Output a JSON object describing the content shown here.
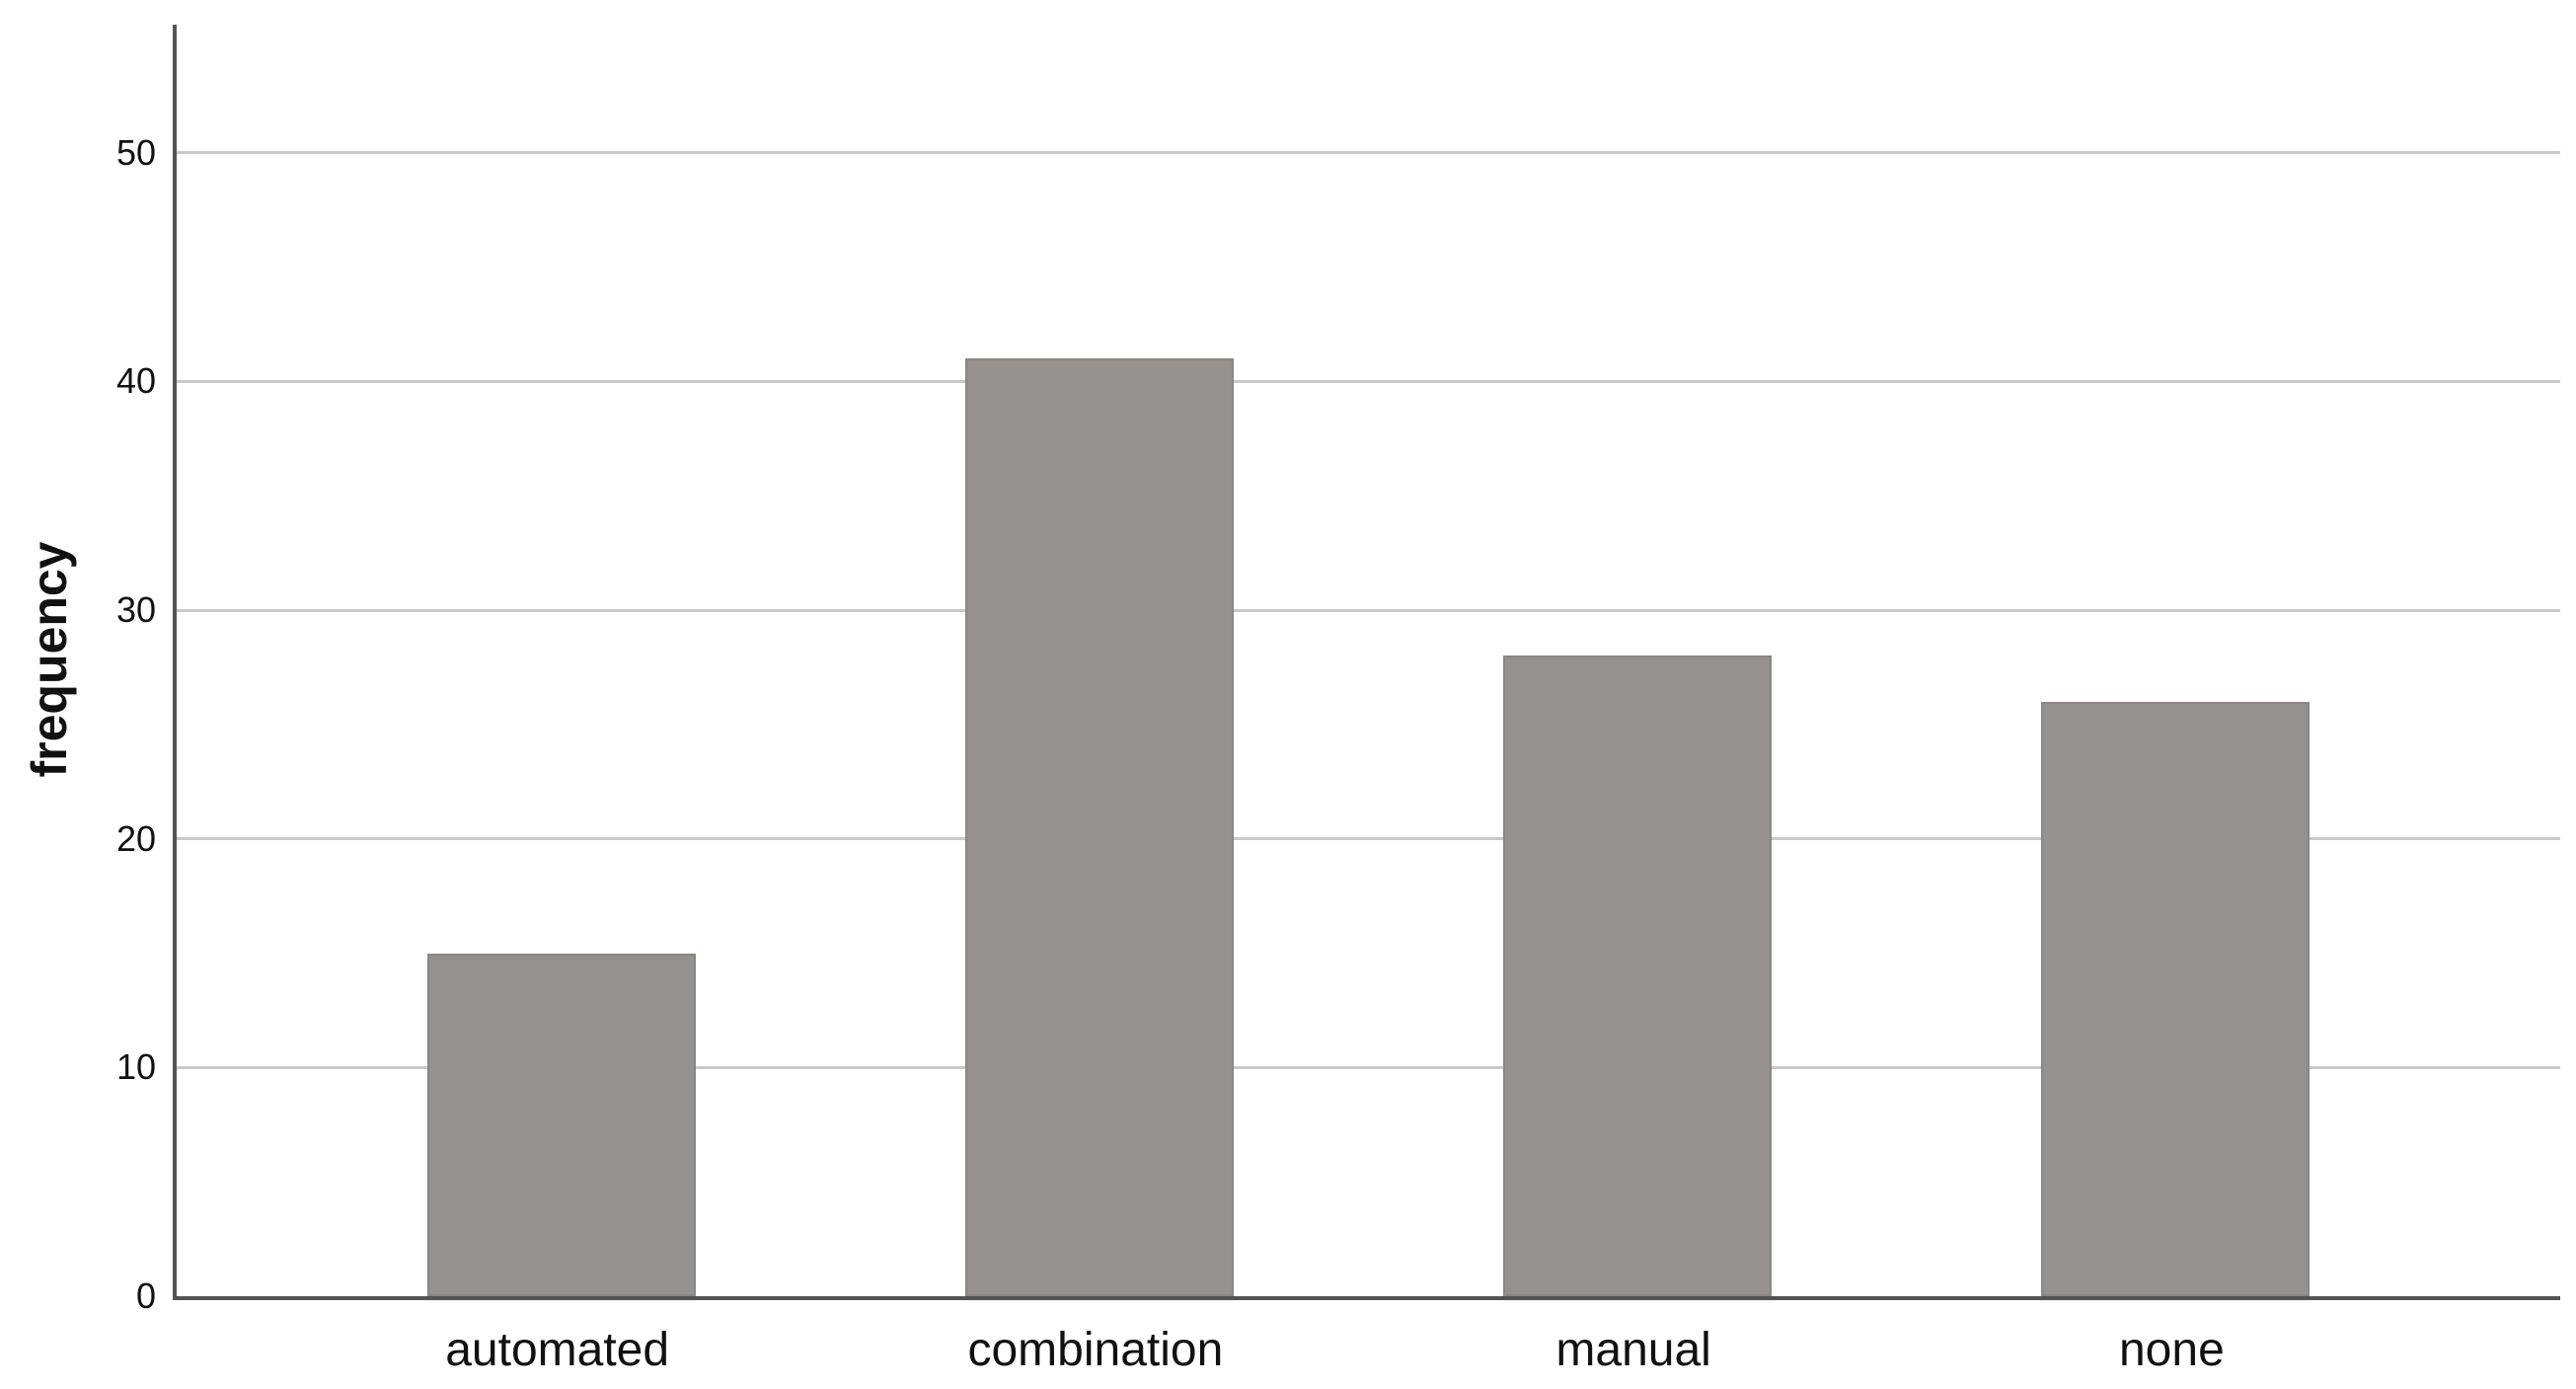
{
  "figure": {
    "background": "#ffffff",
    "bar_color": "#94918f",
    "bar_border_color": "#8a8683",
    "gridline_color": "#c9c9c9",
    "axis_line_color": "#545454",
    "text_color": "#111111"
  },
  "chart_data": {
    "type": "bar",
    "categories": [
      "automated",
      "combination",
      "manual",
      "none"
    ],
    "values": [
      15,
      41,
      28,
      26
    ],
    "title": "",
    "xlabel": "",
    "ylabel": "frequency",
    "yticks": [
      0,
      10,
      20,
      30,
      40,
      50
    ],
    "ylim": [
      0,
      55.6
    ],
    "grid": "horizontal gridlines at each y tick",
    "legend": "none"
  }
}
